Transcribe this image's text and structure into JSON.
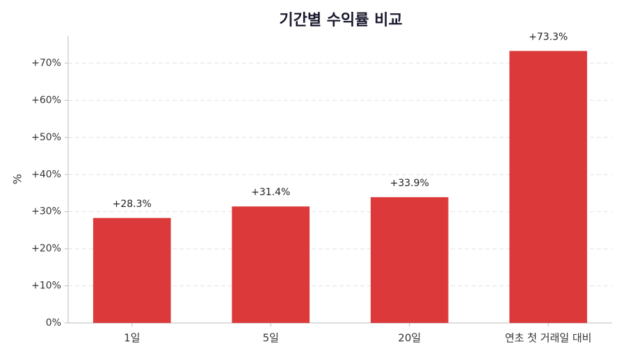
{
  "chart_data": {
    "type": "bar",
    "title": "기간별 수익률 비교",
    "y_label": "%",
    "categories": [
      "1일",
      "5일",
      "20일",
      "연초 첫 거래일 대비"
    ],
    "values": [
      28.3,
      31.4,
      33.9,
      73.3
    ],
    "value_labels": [
      "+28.3%",
      "+31.4%",
      "+33.9%",
      "+73.3%"
    ],
    "color": "#dc3a3a",
    "ylim": [
      0,
      77.3
    ],
    "yticks": [
      {
        "value": 0,
        "label": "0%"
      },
      {
        "value": 10,
        "label": "+10%"
      },
      {
        "value": 20,
        "label": "+20%"
      },
      {
        "value": 30,
        "label": "+30%"
      },
      {
        "value": 40,
        "label": "+40%"
      },
      {
        "value": 50,
        "label": "+50%"
      },
      {
        "value": 60,
        "label": "+60%"
      },
      {
        "value": 70,
        "label": "+70%"
      }
    ],
    "grid": true
  }
}
